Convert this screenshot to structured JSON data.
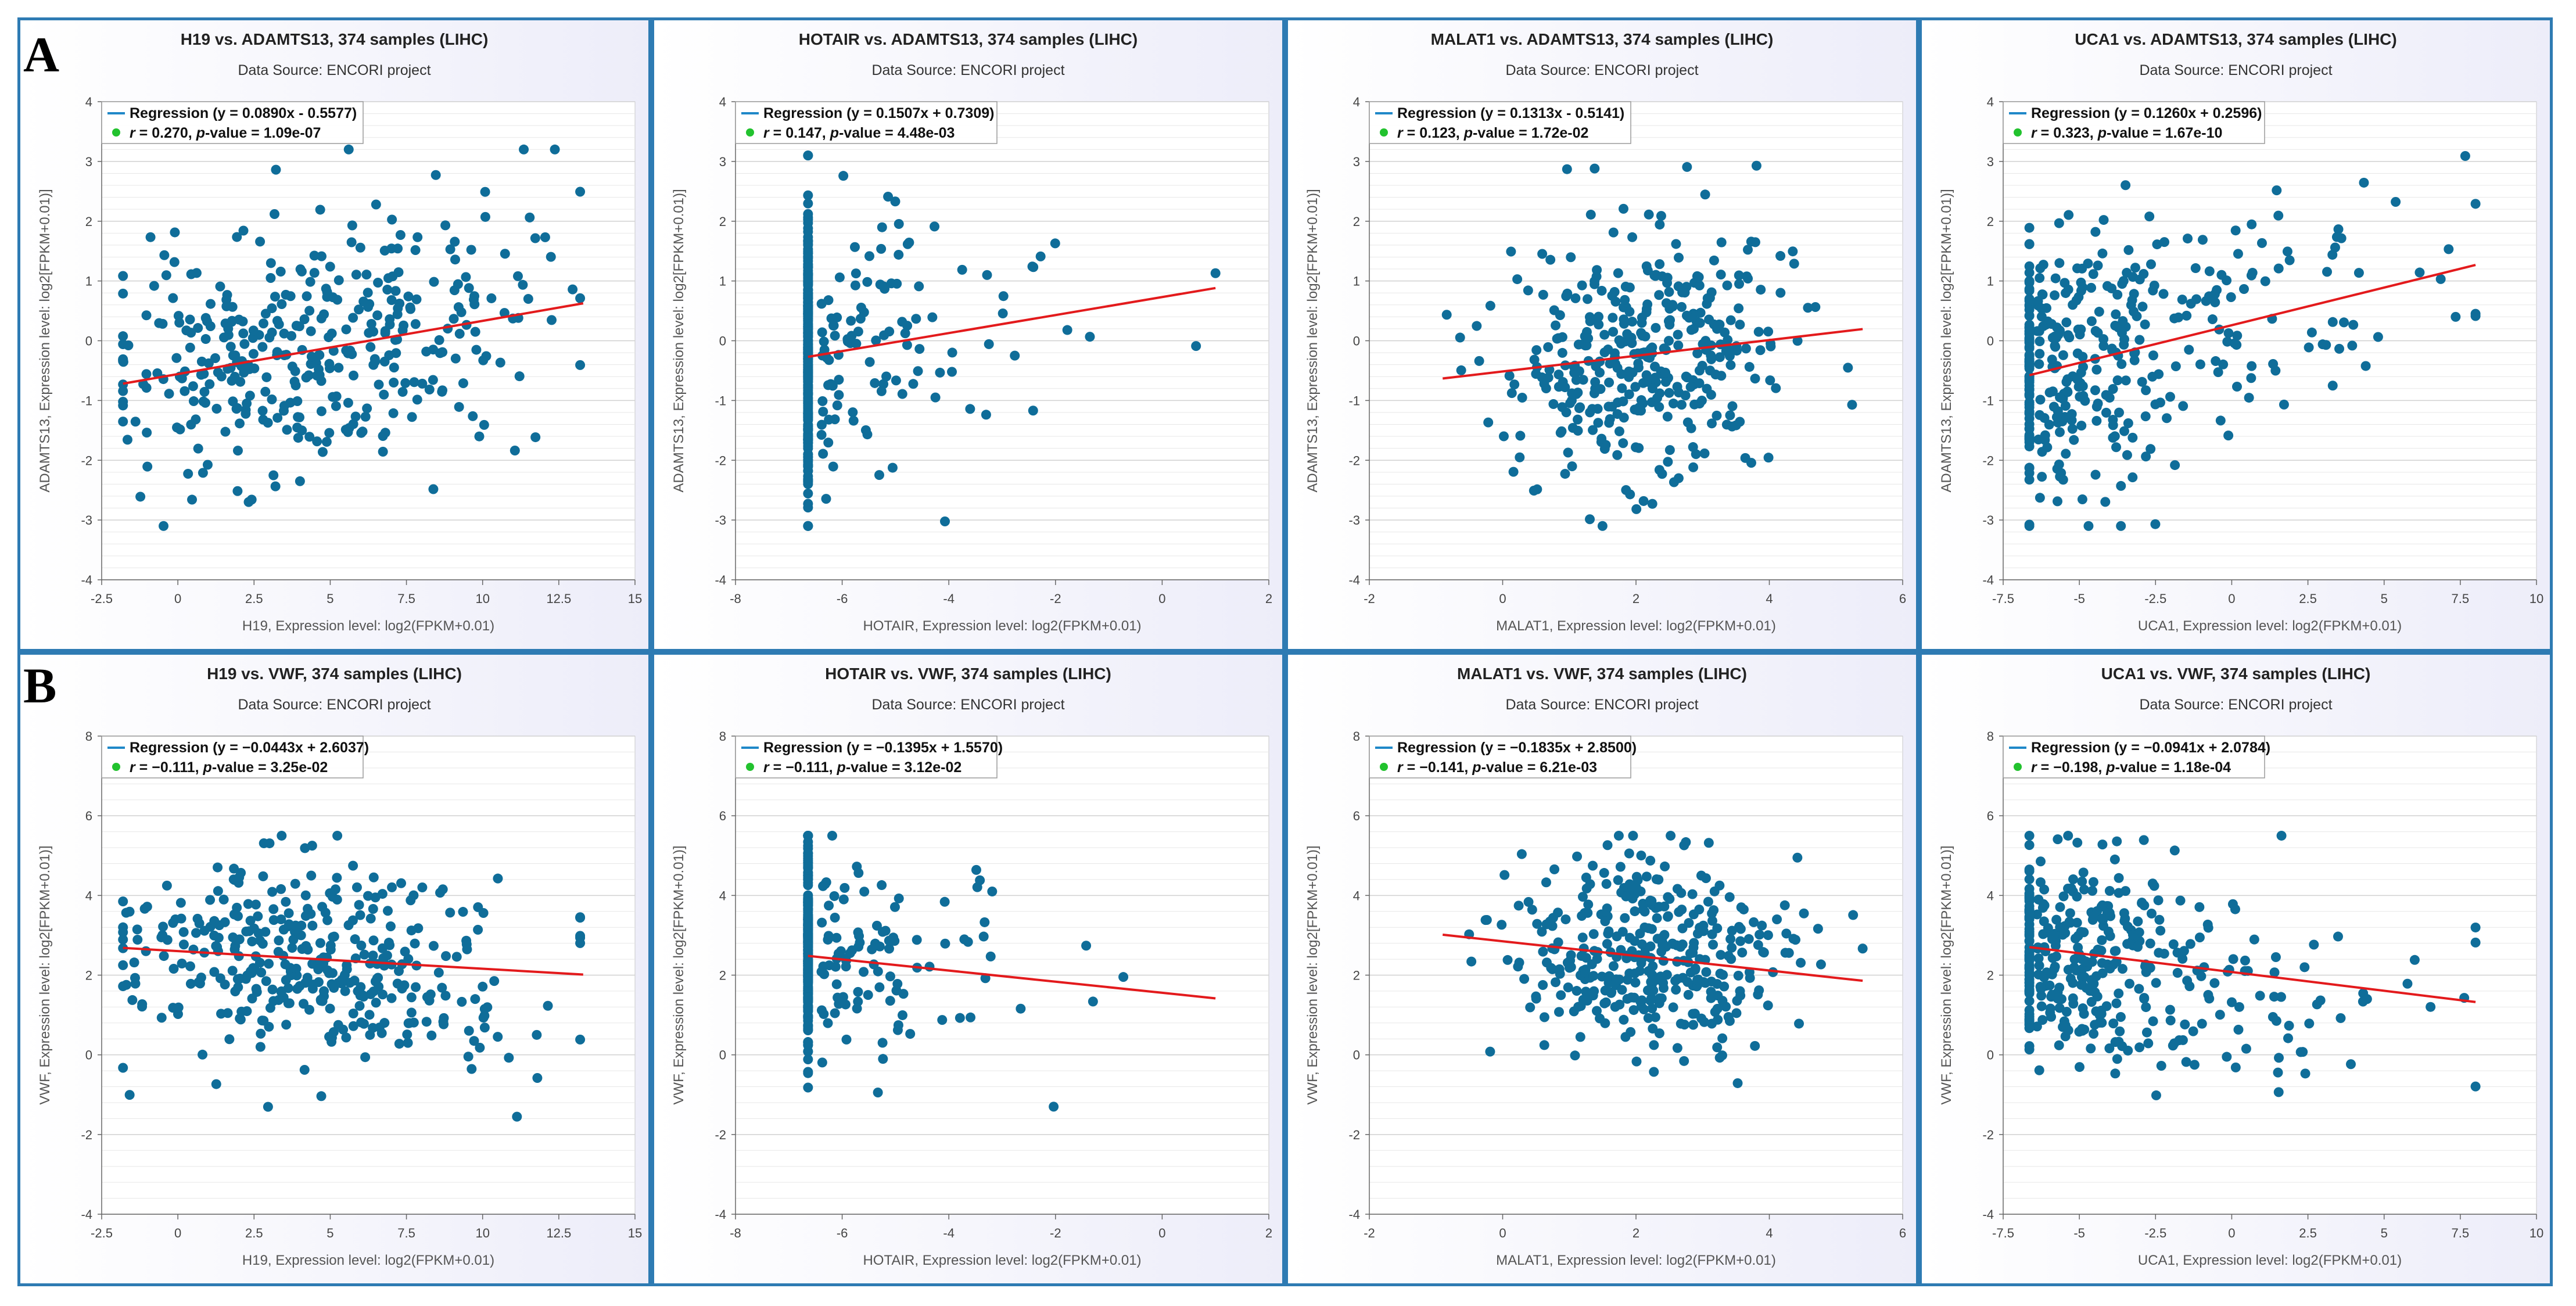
{
  "panel_labels": [
    "A",
    "B"
  ],
  "common": {
    "source_text": "Data Source: ENCORI project",
    "regression_prefix": "Regression",
    "colors": {
      "point": "#0f6d99",
      "regression": "#e31a1c",
      "legend_line": "#1f88c8",
      "legend_dot": "#22c22e",
      "frame": "#2e7bb3"
    }
  },
  "chart_data": [
    {
      "type": "scatter",
      "title": "H19 vs. ADAMTS13, 374 samples (LIHC)",
      "subtitle": "Data Source: ENCORI project",
      "xlabel": "H19, Expression level: log2(FPKM+0.01)",
      "ylabel": "ADAMTS13, Expression level: log2[FPKM+0.01)]",
      "xlim": [
        -2.5,
        15
      ],
      "xticks": [
        -2.5,
        0,
        2.5,
        5,
        7.5,
        10,
        12.5,
        15
      ],
      "xtick_labels": [
        "-2.5",
        "0",
        "2.5",
        "5",
        "7.5",
        "10",
        "12.5",
        "15"
      ],
      "ylim": [
        -4,
        4
      ],
      "yticks": [
        -4,
        -3,
        -2,
        -1,
        0,
        1,
        2,
        3,
        4
      ],
      "ytick_labels": [
        "-4",
        "-3",
        "-2",
        "-1",
        "0",
        "1",
        "2",
        "3",
        "4"
      ],
      "regression_eq": "(y = 0.0890x - 0.5577)",
      "r_text": "= 0.270, ",
      "p_text": "-value = 1.09e-07",
      "slope": 0.089,
      "intercept": -0.5577,
      "line_x": [
        -1.8,
        13.3
      ],
      "n": 374,
      "seed": 11,
      "x_spec": {
        "dist": "normal",
        "center": 4.3,
        "sd": 3.4,
        "min": -1.8,
        "max": 13.2,
        "floor_frac": 0
      },
      "y_spec": {
        "sd": 1.05,
        "min": -3.1,
        "max": 3.2
      }
    },
    {
      "type": "scatter",
      "title": "HOTAIR vs. ADAMTS13, 374 samples (LIHC)",
      "subtitle": "Data Source: ENCORI project",
      "xlabel": "HOTAIR, Expression level: log2(FPKM+0.01)",
      "ylabel": "ADAMTS13, Expression level: log2[FPKM+0.01)]",
      "xlim": [
        -8,
        2
      ],
      "xticks": [
        -8,
        -6,
        -4,
        -2,
        0,
        2
      ],
      "xtick_labels": [
        "-8",
        "-6",
        "-4",
        "-2",
        "0",
        "2"
      ],
      "ylim": [
        -4,
        4
      ],
      "yticks": [
        -4,
        -3,
        -2,
        -1,
        0,
        1,
        2,
        3,
        4
      ],
      "ytick_labels": [
        "-4",
        "-3",
        "-2",
        "-1",
        "0",
        "1",
        "2",
        "3",
        "4"
      ],
      "regression_eq": "(y = 0.1507x + 0.7309)",
      "r_text": "= 0.147, ",
      "p_text": "-value = 4.48e-03",
      "slope": 0.1507,
      "intercept": 0.7309,
      "line_x": [
        -6.64,
        1.0
      ],
      "n": 374,
      "seed": 23,
      "x_spec": {
        "dist": "floor",
        "floor": -6.64,
        "floor_frac": 0.7,
        "tail_scale": 1.4,
        "min": -6.64,
        "max": 1.0
      },
      "y_spec": {
        "sd": 1.15,
        "min": -3.1,
        "max": 3.1
      }
    },
    {
      "type": "scatter",
      "title": "MALAT1 vs. ADAMTS13, 374 samples (LIHC)",
      "subtitle": "Data Source: ENCORI project",
      "xlabel": "MALAT1, Expression level: log2(FPKM+0.01)",
      "ylabel": "ADAMTS13, Expression level: log2[FPKM+0.01)]",
      "xlim": [
        -2,
        6
      ],
      "xticks": [
        -2,
        0,
        2,
        4,
        6
      ],
      "xtick_labels": [
        "-2",
        "0",
        "2",
        "4",
        "6"
      ],
      "ylim": [
        -4,
        4
      ],
      "yticks": [
        -4,
        -3,
        -2,
        -1,
        0,
        1,
        2,
        3,
        4
      ],
      "ytick_labels": [
        "-4",
        "-3",
        "-2",
        "-1",
        "0",
        "1",
        "2",
        "3",
        "4"
      ],
      "regression_eq": "(y = 0.1313x - 0.5141)",
      "r_text": "= 0.123, ",
      "p_text": "-value = 1.72e-02",
      "slope": 0.1313,
      "intercept": -0.5141,
      "line_x": [
        -0.9,
        5.4
      ],
      "n": 374,
      "seed": 37,
      "x_spec": {
        "dist": "normal",
        "center": 2.2,
        "sd": 1.05,
        "min": -0.9,
        "max": 5.4,
        "floor_frac": 0
      },
      "y_spec": {
        "sd": 1.05,
        "min": -3.1,
        "max": 3.2
      }
    },
    {
      "type": "scatter",
      "title": "UCA1 vs. ADAMTS13, 374 samples (LIHC)",
      "subtitle": "Data Source: ENCORI project",
      "xlabel": "UCA1, Expression level: log2(FPKM+0.01)",
      "ylabel": "ADAMTS13, Expression level: log2[FPKM+0.01)]",
      "xlim": [
        -7.5,
        10
      ],
      "xticks": [
        -7.5,
        -5,
        -2.5,
        0,
        2.5,
        5,
        7.5,
        10
      ],
      "xtick_labels": [
        "-7.5",
        "-5",
        "-2.5",
        "0",
        "2.5",
        "5",
        "7.5",
        "10"
      ],
      "ylim": [
        -4,
        4
      ],
      "yticks": [
        -4,
        -3,
        -2,
        -1,
        0,
        1,
        2,
        3,
        4
      ],
      "ytick_labels": [
        "-4",
        "-3",
        "-2",
        "-1",
        "0",
        "1",
        "2",
        "3",
        "4"
      ],
      "regression_eq": "(y = 0.1260x + 0.2596)",
      "r_text": "= 0.323, ",
      "p_text": "-value = 1.67e-10",
      "slope": 0.126,
      "intercept": 0.2596,
      "line_x": [
        -6.64,
        8.0
      ],
      "n": 374,
      "seed": 53,
      "x_spec": {
        "dist": "floor",
        "floor": -6.64,
        "floor_frac": 0.2,
        "tail_scale": 3.6,
        "min": -6.64,
        "max": 8.0
      },
      "y_spec": {
        "sd": 1.05,
        "min": -3.1,
        "max": 3.2
      }
    },
    {
      "type": "scatter",
      "title": "H19 vs. VWF, 374 samples (LIHC)",
      "subtitle": "Data Source: ENCORI project",
      "xlabel": "H19, Expression level: log2(FPKM+0.01)",
      "ylabel": "VWF, Expression level: log2[FPKM+0.01)]",
      "xlim": [
        -2.5,
        15
      ],
      "xticks": [
        -2.5,
        0,
        2.5,
        5,
        7.5,
        10,
        12.5,
        15
      ],
      "xtick_labels": [
        "-2.5",
        "0",
        "2.5",
        "5",
        "7.5",
        "10",
        "12.5",
        "15"
      ],
      "ylim": [
        -4,
        8
      ],
      "yticks": [
        -4,
        -2,
        0,
        2,
        4,
        6,
        8
      ],
      "ytick_labels": [
        "-4",
        "-2",
        "0",
        "2",
        "4",
        "6",
        "8"
      ],
      "regression_eq": "(y = −0.0443x + 2.6037)",
      "r_text": "= −0.111, ",
      "p_text": "-value = 3.25e-02",
      "slope": -0.0443,
      "intercept": 2.6037,
      "line_x": [
        -1.8,
        13.3
      ],
      "n": 374,
      "seed": 71,
      "x_spec": {
        "dist": "normal",
        "center": 4.3,
        "sd": 3.4,
        "min": -1.8,
        "max": 13.2,
        "floor_frac": 0
      },
      "y_spec": {
        "sd": 1.25,
        "min": -2.1,
        "max": 5.5
      }
    },
    {
      "type": "scatter",
      "title": "HOTAIR vs. VWF, 374 samples (LIHC)",
      "subtitle": "Data Source: ENCORI project",
      "xlabel": "HOTAIR, Expression level: log2(FPKM+0.01)",
      "ylabel": "VWF, Expression level: log2[FPKM+0.01)]",
      "xlim": [
        -8,
        2
      ],
      "xticks": [
        -8,
        -6,
        -4,
        -2,
        0,
        2
      ],
      "xtick_labels": [
        "-8",
        "-6",
        "-4",
        "-2",
        "0",
        "2"
      ],
      "ylim": [
        -4,
        8
      ],
      "yticks": [
        -4,
        -2,
        0,
        2,
        4,
        6,
        8
      ],
      "ytick_labels": [
        "-4",
        "-2",
        "0",
        "2",
        "4",
        "6",
        "8"
      ],
      "regression_eq": "(y = −0.1395x + 1.5570)",
      "r_text": "= −0.111, ",
      "p_text": "-value = 3.12e-02",
      "slope": -0.1395,
      "intercept": 1.557,
      "line_x": [
        -6.64,
        1.0
      ],
      "n": 374,
      "seed": 89,
      "x_spec": {
        "dist": "floor",
        "floor": -6.64,
        "floor_frac": 0.7,
        "tail_scale": 1.4,
        "min": -6.64,
        "max": 1.0
      },
      "y_spec": {
        "sd": 1.3,
        "min": -2.1,
        "max": 5.5
      }
    },
    {
      "type": "scatter",
      "title": "MALAT1 vs. VWF, 374 samples (LIHC)",
      "subtitle": "Data Source: ENCORI project",
      "xlabel": "MALAT1, Expression level: log2(FPKM+0.01)",
      "ylabel": "VWF, Expression level: log2[FPKM+0.01)]",
      "xlim": [
        -2,
        6
      ],
      "xticks": [
        -2,
        0,
        2,
        4,
        6
      ],
      "xtick_labels": [
        "-2",
        "0",
        "2",
        "4",
        "6"
      ],
      "ylim": [
        -4,
        8
      ],
      "yticks": [
        -4,
        -2,
        0,
        2,
        4,
        6,
        8
      ],
      "ytick_labels": [
        "-4",
        "-2",
        "0",
        "2",
        "4",
        "6",
        "8"
      ],
      "regression_eq": "(y = −0.1835x + 2.8500)",
      "r_text": "= −0.141, ",
      "p_text": "-value = 6.21e-03",
      "slope": -0.1835,
      "intercept": 2.85,
      "line_x": [
        -0.9,
        5.4
      ],
      "n": 374,
      "seed": 97,
      "x_spec": {
        "dist": "normal",
        "center": 2.2,
        "sd": 1.05,
        "min": -0.9,
        "max": 5.4,
        "floor_frac": 0
      },
      "y_spec": {
        "sd": 1.25,
        "min": -2.1,
        "max": 5.5
      }
    },
    {
      "type": "scatter",
      "title": "UCA1 vs. VWF, 374 samples (LIHC)",
      "subtitle": "Data Source: ENCORI project",
      "xlabel": "UCA1, Expression level: log2(FPKM+0.01)",
      "ylabel": "VWF, Expression level: log2[FPKM+0.01)]",
      "xlim": [
        -7.5,
        10
      ],
      "xticks": [
        -7.5,
        -5,
        -2.5,
        0,
        2.5,
        5,
        7.5,
        10
      ],
      "xtick_labels": [
        "-7.5",
        "-5",
        "-2.5",
        "0",
        "2.5",
        "5",
        "7.5",
        "10"
      ],
      "ylim": [
        -4,
        8
      ],
      "yticks": [
        -4,
        -2,
        0,
        2,
        4,
        6,
        8
      ],
      "ytick_labels": [
        "-4",
        "-2",
        "0",
        "2",
        "4",
        "6",
        "8"
      ],
      "regression_eq": "(y = −0.0941x + 2.0784)",
      "r_text": "= −0.198, ",
      "p_text": "-value = 1.18e-04",
      "slope": -0.0941,
      "intercept": 2.0784,
      "line_x": [
        -6.64,
        8.0
      ],
      "n": 374,
      "seed": 101,
      "x_spec": {
        "dist": "floor",
        "floor": -6.64,
        "floor_frac": 0.2,
        "tail_scale": 3.6,
        "min": -6.64,
        "max": 8.0
      },
      "y_spec": {
        "sd": 1.25,
        "min": -2.1,
        "max": 5.5
      }
    }
  ]
}
